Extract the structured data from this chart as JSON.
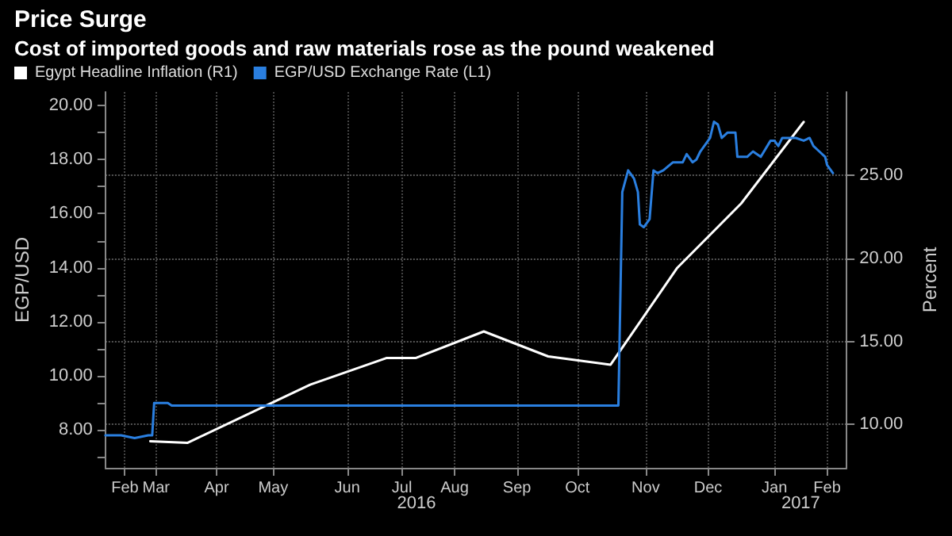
{
  "chart_data": {
    "type": "line",
    "title": "Price Surge",
    "subtitle": "Cost of imported goods and raw materials rose as the pound weakened",
    "ylabel": "EGP/USD",
    "y2label": "Percent",
    "legend": "top left",
    "grid": true,
    "marker": "none",
    "line_style": "solid",
    "xlim": [
      "2016-02-05",
      "2017-02-19"
    ],
    "xticks": [
      {
        "value": "2016-02-15",
        "label": "Feb"
      },
      {
        "value": "2016-03-02",
        "label": "Mar"
      },
      {
        "value": "2016-04-02",
        "label": "Apr"
      },
      {
        "value": "2016-05-01",
        "label": "May"
      },
      {
        "value": "2016-06-08",
        "label": "Jun"
      },
      {
        "value": "2016-07-06",
        "label": "Jul"
      },
      {
        "value": "2016-08-02",
        "label": "Aug"
      },
      {
        "value": "2016-09-03",
        "label": "Sep"
      },
      {
        "value": "2016-10-04",
        "label": "Oct"
      },
      {
        "value": "2016-11-08",
        "label": "Nov"
      },
      {
        "value": "2016-12-10",
        "label": "Dec"
      },
      {
        "value": "2017-01-13",
        "label": "Jan"
      },
      {
        "value": "2017-02-09",
        "label": "Feb"
      }
    ],
    "ylim": [
      6.6,
      20.5
    ],
    "yticks": [
      {
        "value": 7,
        "label": null
      },
      {
        "value": 8,
        "label": "8.00"
      },
      {
        "value": 9,
        "label": null
      },
      {
        "value": 10,
        "label": "10.00"
      },
      {
        "value": 11,
        "label": null
      },
      {
        "value": 12,
        "label": "12.00"
      },
      {
        "value": 13,
        "label": null
      },
      {
        "value": 14,
        "label": "14.00"
      },
      {
        "value": 15,
        "label": null
      },
      {
        "value": 16,
        "label": "16.00"
      },
      {
        "value": 17,
        "label": null
      },
      {
        "value": 18,
        "label": "18.00"
      },
      {
        "value": 19,
        "label": null
      },
      {
        "value": 20,
        "label": "20.00"
      }
    ],
    "y2lim": [
      7.4,
      30
    ],
    "y2ticks": [
      {
        "value": 10,
        "label": "10.00"
      },
      {
        "value": 15,
        "label": "15.00"
      },
      {
        "value": 20,
        "label": "20.00"
      },
      {
        "value": 25,
        "label": "25.00"
      }
    ],
    "annotations": [
      "2016",
      "2017"
    ],
    "series": [
      {
        "name": "Egypt Headline Inflation (R1)",
        "color": "#ffffff",
        "axis": "y2",
        "x": [
          "2016-02-28",
          "2016-03-18",
          "2016-05-20",
          "2016-06-28",
          "2016-07-13",
          "2016-08-17",
          "2016-09-19",
          "2016-10-21",
          "2016-11-24",
          "2016-12-27",
          "2017-01-28"
        ],
        "values": [
          9.0,
          8.9,
          12.4,
          14.0,
          14.0,
          15.6,
          14.1,
          13.6,
          19.4,
          23.3,
          28.2
        ]
      },
      {
        "name": "EGP/USD Exchange Rate (L1)",
        "color": "#2a7fe0",
        "x": [
          "2016-02-05",
          "2016-02-13",
          "2016-02-20",
          "2016-02-27",
          "2016-02-29",
          "2016-03-01",
          "2016-03-08",
          "2016-03-10",
          "2016-10-25",
          "2016-10-27",
          "2016-10-30",
          "2016-11-02",
          "2016-11-04",
          "2016-11-05",
          "2016-11-07",
          "2016-11-10",
          "2016-11-12",
          "2016-11-14",
          "2016-11-17",
          "2016-11-22",
          "2016-11-26",
          "2016-11-27",
          "2016-11-29",
          "2016-12-02",
          "2016-12-04",
          "2016-12-06",
          "2016-12-09",
          "2016-12-11",
          "2016-12-13",
          "2016-12-15",
          "2016-12-17",
          "2016-12-20",
          "2016-12-24",
          "2016-12-25",
          "2016-12-30",
          "2017-01-02",
          "2017-01-06",
          "2017-01-11",
          "2017-01-13",
          "2017-01-15",
          "2017-01-17",
          "2017-01-24",
          "2017-01-28",
          "2017-01-31",
          "2017-02-02",
          "2017-02-05",
          "2017-02-08",
          "2017-02-09",
          "2017-02-12"
        ],
        "values": [
          7.8,
          7.8,
          7.7,
          7.8,
          7.8,
          9.0,
          9.0,
          8.9,
          8.9,
          16.8,
          17.6,
          17.3,
          16.8,
          15.6,
          15.5,
          15.8,
          17.6,
          17.5,
          17.6,
          17.9,
          17.9,
          17.9,
          18.2,
          17.9,
          18.0,
          18.3,
          18.6,
          18.8,
          19.4,
          19.3,
          18.8,
          19.0,
          19.0,
          18.1,
          18.1,
          18.3,
          18.1,
          18.7,
          18.7,
          18.5,
          18.8,
          18.8,
          18.7,
          18.8,
          18.5,
          18.3,
          18.1,
          17.8,
          17.5
        ]
      }
    ]
  }
}
